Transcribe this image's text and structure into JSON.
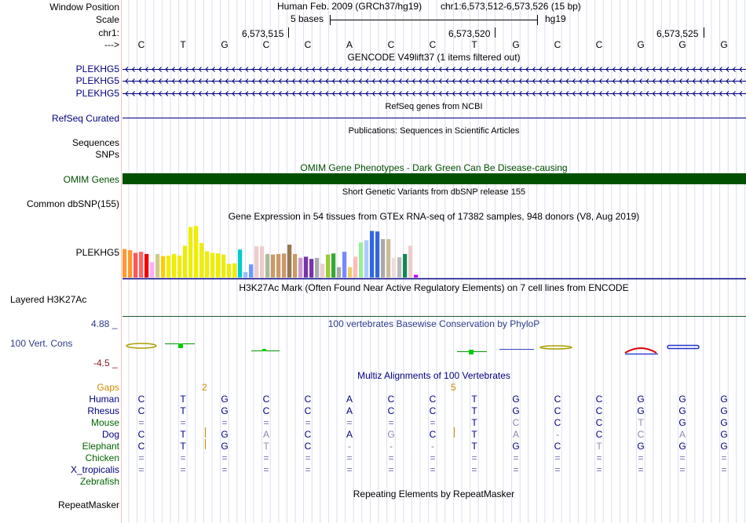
{
  "header": {
    "window_position_label": "Window Position",
    "scale_label": "Scale",
    "chrom_label": "chr1:",
    "arrow_label": "--->",
    "assembly_text": "Human Feb. 2009 (GRCh37/hg19)",
    "position_text": "chr1:6,573,512-6,573,526 (15 bp)",
    "scale_text": "5 bases",
    "db_text": "hg19",
    "ticks": [
      "6,573,515",
      "6,573,520",
      "6,573,525"
    ]
  },
  "bases": [
    "C",
    "T",
    "G",
    "C",
    "C",
    "A",
    "C",
    "C",
    "T",
    "G",
    "C",
    "C",
    "G",
    "G",
    "G"
  ],
  "gencode": {
    "title": "GENCODE V49lift37 (1 items filtered out)",
    "rows": [
      "PLEKHG5",
      "PLEKHG5",
      "PLEKHG5"
    ]
  },
  "refseq": {
    "title": "RefSeq genes from NCBI",
    "label": "RefSeq Curated"
  },
  "publications": {
    "title": "Publications: Sequences in Scientific Articles",
    "label1": "Sequences",
    "label2": "SNPs"
  },
  "omim": {
    "title": "OMIM Gene Phenotypes - Dark Green Can Be Disease-causing",
    "label": "OMIM Genes",
    "color": "#005000"
  },
  "dbsnp": {
    "title": "Short Genetic Variants from dbSNP release 155",
    "label": "Common dbSNP(155)"
  },
  "gtex": {
    "title": "Gene Expression in 54 tissues from GTEx RNA-seq of 17382 samples, 948 donors (V8, Aug 2019)",
    "label": "PLEKHG5",
    "values": [
      0.52,
      0.5,
      0.45,
      0.47,
      0.43,
      0.28,
      0.43,
      0.39,
      0.4,
      0.43,
      0.4,
      0.58,
      0.92,
      0.94,
      0.63,
      0.48,
      0.45,
      0.44,
      0.42,
      0.25,
      0.26,
      0.51,
      0.1,
      0.24,
      0.57,
      0.57,
      0.43,
      0.42,
      0.43,
      0.44,
      0.6,
      0.43,
      0.36,
      0.38,
      0.34,
      0.36,
      0.25,
      0.42,
      0.44,
      0.19,
      0.47,
      0.19,
      0.38,
      0.64,
      0.68,
      0.85,
      0.84,
      0.7,
      0.7,
      0.36,
      0.37,
      0.43,
      0.58,
      0.05
    ],
    "colors": [
      "#ff9933",
      "#ff9933",
      "#ff5555",
      "#ff6666",
      "#ee0000",
      "#ffaaff",
      "#cccc88",
      "#ffcc00",
      "#eeee00",
      "#eeee00",
      "#eeee00",
      "#eeee00",
      "#eeee00",
      "#eeee00",
      "#eeee00",
      "#eeee00",
      "#eeee00",
      "#eeee00",
      "#eeee00",
      "#eeee00",
      "#eeee00",
      "#00cccc",
      "#99bbff",
      "#6699ff",
      "#eecccc",
      "#eecccc",
      "#aabb99",
      "#cc9966",
      "#cc9966",
      "#cc9966",
      "#99774f",
      "#cc9966",
      "#cc99cc",
      "#7733aa",
      "#7733aa",
      "#aaaaaa",
      "#eecccc",
      "#99cc33",
      "#33aa33",
      "#aaaaaa",
      "#7788ff",
      "#eecc66",
      "#ffbbbb",
      "#99ee99",
      "#aaccff",
      "#3366dd",
      "#3366dd",
      "#aaaaaa",
      "#ccbb99",
      "#eedddd",
      "#bbbbbb",
      "#118855",
      "#eecccc",
      "#bb00ff"
    ]
  },
  "h3k27ac": {
    "title": "H3K27Ac Mark (Often Found Near Active Regulatory Elements) on 7 cell lines from ENCODE",
    "label": "Layered H3K27Ac"
  },
  "conservation": {
    "title": "100 vertebrates Basewise Conservation by PhyloP",
    "label": "100 Vert. Cons",
    "max_label": "4.88 _",
    "min_label": "-4.5 _"
  },
  "multiz": {
    "title": "Multiz Alignments of 100 Vertebrates",
    "gaps_label": "Gaps",
    "gap_numbers": [
      "2",
      "5"
    ],
    "species": [
      {
        "name": "Human",
        "bases": [
          "C",
          "T",
          "G",
          "C",
          "C",
          "A",
          "C",
          "C",
          "T",
          "G",
          "C",
          "C",
          "G",
          "G",
          "G"
        ]
      },
      {
        "name": "Rhesus",
        "bases": [
          "C",
          "T",
          "G",
          "C",
          "C",
          "A",
          "C",
          "C",
          "T",
          "G",
          "C",
          "C",
          "G",
          "G",
          "G"
        ]
      },
      {
        "name": "Mouse",
        "bases": [
          "=",
          "=",
          "=",
          "=",
          "=",
          "=",
          "=",
          "=",
          "T",
          "C",
          "C",
          "C",
          "T",
          "G",
          "G"
        ]
      },
      {
        "name": "Dog",
        "bases": [
          "C",
          "T",
          "G",
          "A",
          "C",
          "A",
          "G",
          "C",
          "T",
          "A",
          "-",
          "C",
          "C",
          "A",
          "G"
        ]
      },
      {
        "name": "Elephant",
        "bases": [
          "C",
          "T",
          "G",
          "T",
          "C",
          "-",
          "-",
          "-",
          "T",
          "G",
          "C",
          "T",
          "G",
          "G",
          "G"
        ]
      },
      {
        "name": "Chicken",
        "bases": [
          "=",
          "=",
          "=",
          "=",
          "=",
          "=",
          "=",
          "=",
          "=",
          "=",
          "=",
          "=",
          "=",
          "=",
          "="
        ]
      },
      {
        "name": "X_tropicalis",
        "bases": [
          "=",
          "=",
          "=",
          "=",
          "=",
          "=",
          "=",
          "=",
          "=",
          "=",
          "=",
          "=",
          "=",
          "=",
          "="
        ]
      },
      {
        "name": "Zebrafish",
        "bases": [
          "",
          "",
          "",
          "",
          "",
          "",
          "",
          "",
          "",
          "",
          "",
          "",
          "",
          "",
          ""
        ]
      }
    ]
  },
  "repeatmasker": {
    "title": "Repeating Elements by RepeatMasker",
    "label": "RepeatMasker"
  }
}
